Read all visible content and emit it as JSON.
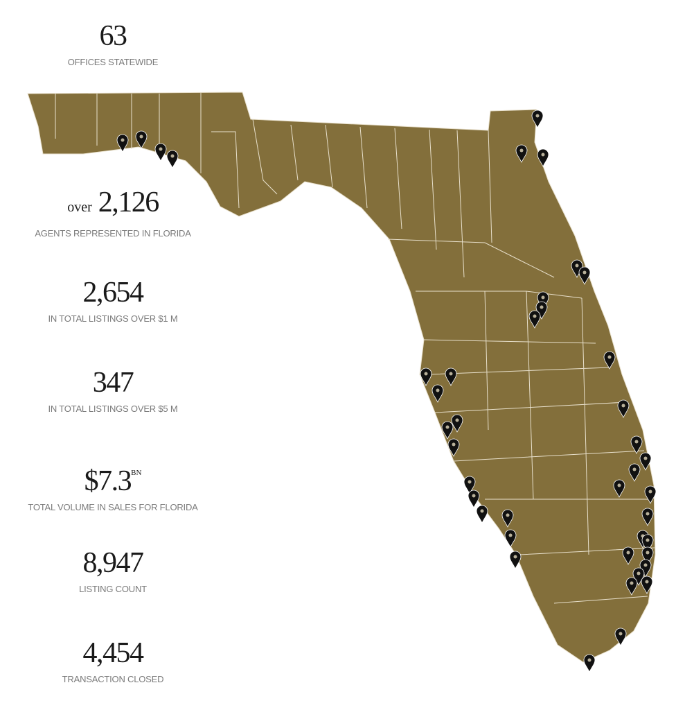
{
  "stats": [
    {
      "value": "63",
      "label": "OFFICES STATEWIDE"
    },
    {
      "prefix": "over",
      "value": "2,126",
      "label": "AGENTS REPRESENTED IN FLORIDA"
    },
    {
      "value": "2,654",
      "label": "IN TOTAL LISTINGS OVER $1 M"
    },
    {
      "value": "347",
      "label": "IN TOTAL LISTINGS OVER $5 M"
    },
    {
      "value": "$7.3",
      "suffix": "BN",
      "label": "TOTAL VOLUME IN SALES FOR FLORIDA"
    },
    {
      "value": "8,947",
      "label": "LISTING COUNT"
    },
    {
      "value": "4,454",
      "label": "TRANSACTION CLOSED"
    }
  ]
}
